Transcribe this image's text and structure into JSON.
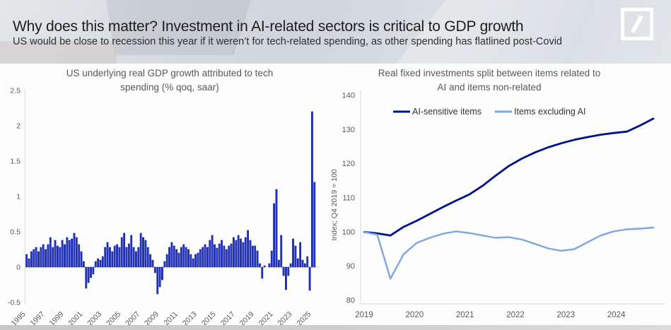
{
  "header": {
    "title": "Why does this matter? Investment in AI-related sectors is critical to GDP growth",
    "subtitle": "US would be close to recession this year if it weren’t for tech-related spending, as other spending has flatlined post-Covid",
    "logo_icon": "deutsche-bank-slash-logo"
  },
  "colors": {
    "bar_fill": "#2236c4",
    "bar_edge": "#0a1590",
    "dark_line": "#001489",
    "light_line": "#7da7e3",
    "axis_line": "#d8d8d8",
    "tick_text": "#595959",
    "chart_title_text": "#55595e",
    "legend_text": "#333333"
  },
  "chart_data": [
    {
      "type": "bar",
      "title_lines": [
        "US underlying real GDP growth attributed to tech",
        "spending (% qoq, saar)"
      ],
      "start_quarter": "1995Q1",
      "frequency": "quarterly",
      "values": [
        0.18,
        0.12,
        0.22,
        0.25,
        0.28,
        0.22,
        0.28,
        0.32,
        0.25,
        0.32,
        0.42,
        0.28,
        0.38,
        0.3,
        0.28,
        0.38,
        0.32,
        0.42,
        0.38,
        0.4,
        0.48,
        0.42,
        0.32,
        0.22,
        0.08,
        -0.3,
        -0.22,
        -0.15,
        -0.1,
        0.08,
        0.12,
        0.1,
        0.15,
        0.28,
        0.35,
        0.28,
        0.22,
        0.3,
        0.32,
        0.28,
        0.42,
        0.48,
        0.28,
        0.33,
        0.45,
        0.28,
        0.22,
        0.28,
        0.48,
        0.42,
        0.38,
        0.28,
        0.18,
        0.1,
        -0.08,
        -0.38,
        -0.28,
        -0.18,
        0.08,
        0.18,
        0.28,
        0.35,
        0.3,
        0.25,
        0.2,
        0.28,
        0.32,
        0.28,
        0.25,
        0.18,
        0.12,
        0.18,
        0.2,
        0.25,
        0.28,
        0.32,
        0.28,
        0.38,
        0.45,
        0.32,
        0.27,
        0.33,
        0.38,
        0.3,
        0.25,
        0.3,
        0.33,
        0.42,
        0.38,
        0.45,
        0.4,
        0.35,
        0.42,
        0.52,
        0.38,
        0.3,
        0.3,
        0.23,
        0.05,
        -0.16,
        0.02,
        0.0,
        0.05,
        0.23,
        0.9,
        1.1,
        0.1,
        0.45,
        -0.12,
        -0.32,
        -0.12,
        0.05,
        0.4,
        0.3,
        0.12,
        0.35,
        0.1,
        0.05,
        0.15,
        -0.33,
        2.2,
        1.2
      ],
      "yticks": [
        2.5,
        2,
        1.5,
        1,
        0.5,
        0,
        -0.5
      ],
      "ylim": [
        -0.5,
        2.5
      ],
      "xticks": [
        1995,
        1997,
        1999,
        2001,
        2003,
        2005,
        2007,
        2009,
        2011,
        2013,
        2015,
        2017,
        2019,
        2021,
        2023,
        2025
      ],
      "grid": false
    },
    {
      "type": "line",
      "title_lines": [
        "Real fixed investments split between items related to",
        "AI and items non-related"
      ],
      "ylabel": "Index; Q4 2019 = 100",
      "start_quarter": "2019Q4",
      "frequency": "quarterly",
      "series": [
        {
          "name": "AI-sensitive items",
          "values": [
            100,
            99.6,
            99.0,
            101.5,
            103.3,
            105.3,
            107.3,
            109.2,
            111.0,
            113.5,
            116.5,
            119.3,
            121.5,
            123.3,
            124.8,
            126.0,
            127.0,
            127.8,
            128.5,
            129.0,
            129.4,
            131.2,
            133.2
          ]
        },
        {
          "name": "Items excluding AI",
          "values": [
            100,
            99.2,
            86.3,
            93.5,
            96.8,
            98.3,
            99.5,
            100.2,
            99.7,
            99.0,
            98.3,
            98.5,
            97.8,
            96.5,
            95.2,
            94.5,
            95.0,
            97.0,
            99.0,
            100.2,
            100.8,
            101.0,
            101.3
          ]
        }
      ],
      "yticks": [
        140,
        130,
        120,
        110,
        100,
        90,
        80
      ],
      "ylim": [
        80,
        140
      ],
      "xticks": [
        2019,
        2020,
        2021,
        2022,
        2023,
        2024
      ],
      "legend_position": "top",
      "grid": false
    }
  ]
}
